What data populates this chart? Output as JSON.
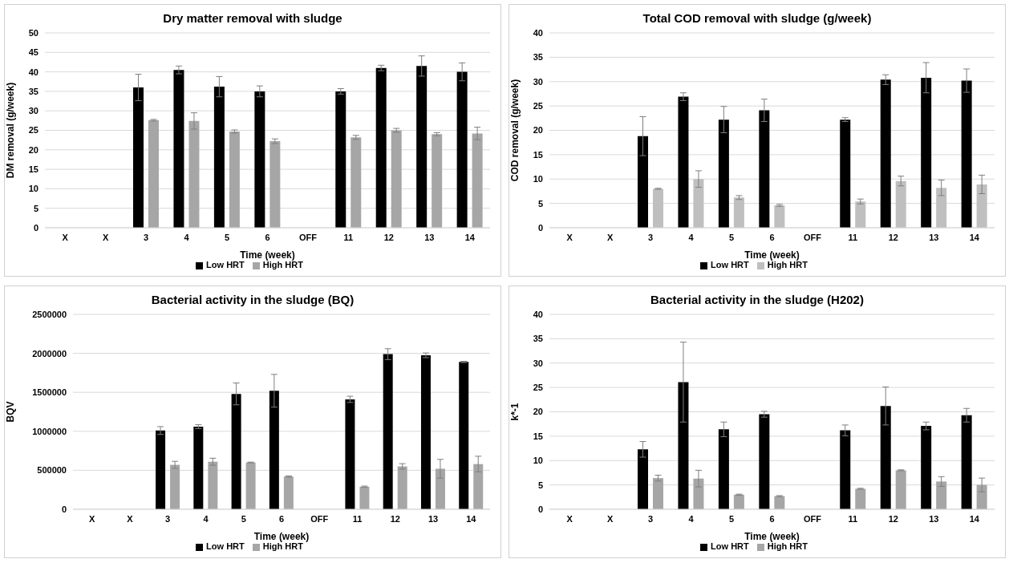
{
  "chart_data": [
    {
      "type": "bar",
      "title": "Dry matter removal with sludge",
      "xlabel": "Time (week)",
      "ylabel": "DM removal (g/week)",
      "categories": [
        "X",
        "X",
        "3",
        "4",
        "5",
        "6",
        "OFF",
        "11",
        "12",
        "13",
        "14"
      ],
      "ylim": [
        0,
        50
      ],
      "yticks": [
        0,
        5,
        10,
        15,
        20,
        25,
        30,
        35,
        40,
        45,
        50
      ],
      "grid": "y",
      "legend": "bottom",
      "series": [
        {
          "name": "Low HRT",
          "color": "#000000",
          "values": [
            null,
            null,
            36,
            40.5,
            36.2,
            35,
            null,
            35,
            41,
            41.5,
            40
          ],
          "errors": [
            null,
            null,
            3.4,
            1,
            2.6,
            1.4,
            null,
            0.7,
            0.7,
            2.6,
            2.3
          ]
        },
        {
          "name": "High HRT",
          "color": "#a6a6a6",
          "values": [
            null,
            null,
            27.6,
            27.4,
            24.7,
            22.2,
            null,
            23.2,
            25,
            24,
            24.2
          ],
          "errors": [
            null,
            null,
            0.2,
            2.1,
            0.4,
            0.6,
            null,
            0.5,
            0.5,
            0.4,
            1.6
          ]
        }
      ]
    },
    {
      "type": "bar",
      "title": "Total COD removal with sludge (g/week)",
      "xlabel": "Time (week)",
      "ylabel": "COD removal (g/week)",
      "categories": [
        "X",
        "X",
        "3",
        "4",
        "5",
        "6",
        "OFF",
        "11",
        "12",
        "13",
        "14"
      ],
      "ylim": [
        0,
        40
      ],
      "yticks": [
        0,
        5,
        10,
        15,
        20,
        25,
        30,
        35,
        40
      ],
      "grid": "y",
      "legend": "bottom",
      "series": [
        {
          "name": "Low HRT",
          "color": "#000000",
          "values": [
            null,
            null,
            18.8,
            26.9,
            22.2,
            24.1,
            null,
            22.2,
            30.4,
            30.8,
            30.2
          ],
          "errors": [
            null,
            null,
            4,
            0.8,
            2.7,
            2.3,
            null,
            0.4,
            1,
            3.1,
            2.4
          ]
        },
        {
          "name": "High HRT",
          "color": "#bfbfbf",
          "values": [
            null,
            null,
            8,
            10,
            6.2,
            4.6,
            null,
            5.4,
            9.6,
            8.2,
            8.9
          ],
          "errors": [
            null,
            null,
            0.1,
            1.7,
            0.4,
            0.2,
            null,
            0.5,
            1,
            1.6,
            1.9
          ]
        }
      ]
    },
    {
      "type": "bar",
      "title": "Bacterial activity in the sludge (BQ)",
      "xlabel": "Time (week)",
      "ylabel": "BQV",
      "categories": [
        "X",
        "X",
        "3",
        "4",
        "5",
        "6",
        "OFF",
        "11",
        "12",
        "13",
        "14"
      ],
      "ylim": [
        0,
        2500000
      ],
      "yticks": [
        0,
        500000,
        1000000,
        1500000,
        2000000,
        2500000
      ],
      "grid": "y",
      "legend": "bottom",
      "series": [
        {
          "name": "Low HRT",
          "color": "#000000",
          "values": [
            null,
            null,
            1010000,
            1060000,
            1480000,
            1520000,
            null,
            1410000,
            1990000,
            1975000,
            1890000
          ],
          "errors": [
            null,
            null,
            50000,
            25000,
            140000,
            210000,
            null,
            40000,
            70000,
            30000,
            8000
          ]
        },
        {
          "name": "High HRT",
          "color": "#a6a6a6",
          "values": [
            null,
            null,
            570000,
            610000,
            600000,
            420000,
            null,
            290000,
            550000,
            520000,
            580000
          ],
          "errors": [
            null,
            null,
            45000,
            45000,
            5000,
            8000,
            null,
            8000,
            35000,
            120000,
            100000
          ]
        }
      ]
    },
    {
      "type": "bar",
      "title": "Bacterial activity in the sludge (H202)",
      "xlabel": "Time (week)",
      "ylabel": "k*-1",
      "categories": [
        "X",
        "X",
        "3",
        "4",
        "5",
        "6",
        "OFF",
        "11",
        "12",
        "13",
        "14"
      ],
      "ylim": [
        0,
        40
      ],
      "yticks": [
        0,
        5,
        10,
        15,
        20,
        25,
        30,
        35,
        40
      ],
      "grid": "y",
      "legend": "bottom",
      "series": [
        {
          "name": "Low HRT",
          "color": "#000000",
          "values": [
            null,
            null,
            12.3,
            26.1,
            16.4,
            19.5,
            null,
            16.2,
            21.2,
            17.1,
            19.3
          ],
          "errors": [
            null,
            null,
            1.6,
            8.2,
            1.5,
            0.6,
            null,
            1.1,
            3.9,
            0.8,
            1.4
          ]
        },
        {
          "name": "High HRT",
          "color": "#a6a6a6",
          "values": [
            null,
            null,
            6.4,
            6.3,
            3,
            2.7,
            null,
            4.2,
            8,
            5.7,
            5
          ],
          "errors": [
            null,
            null,
            0.6,
            1.7,
            0.1,
            0.1,
            null,
            0.1,
            0.1,
            1,
            1.4
          ]
        }
      ]
    }
  ]
}
